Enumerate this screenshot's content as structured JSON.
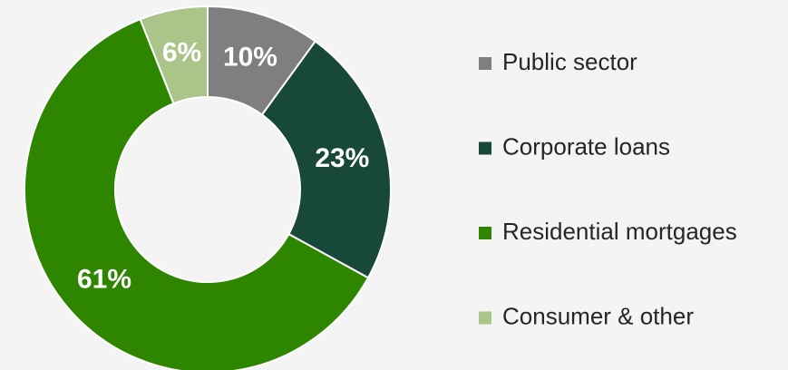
{
  "chart_data": {
    "type": "pie",
    "categories": [
      "Public sector",
      "Corporate loans",
      "Residential mortgages",
      "Consumer & other"
    ],
    "values": [
      10,
      23,
      61,
      6
    ],
    "value_labels": [
      "10%",
      "23%",
      "61%",
      "6%"
    ],
    "colors": [
      "#7f7f7f",
      "#17483a",
      "#2d8500",
      "#abc48a"
    ],
    "donut": true,
    "legend": "right"
  }
}
